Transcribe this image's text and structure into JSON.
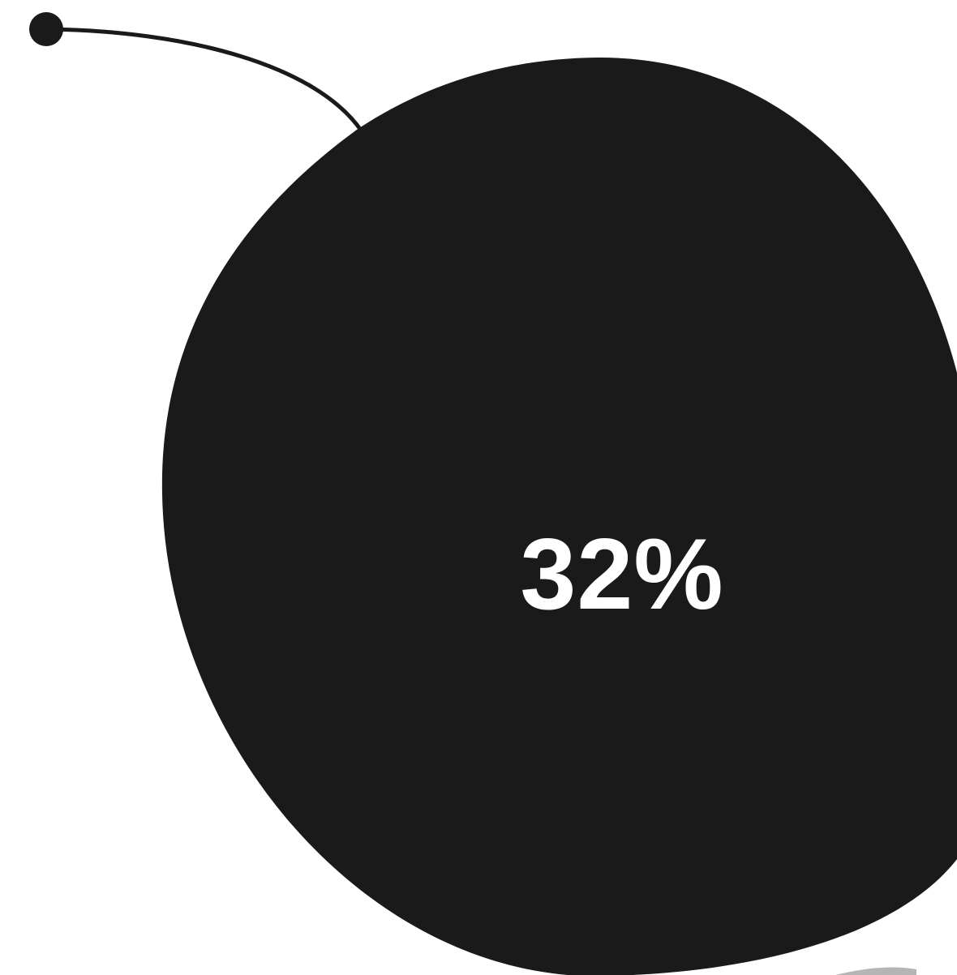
{
  "stat": {
    "value_label": "32%"
  },
  "colors": {
    "blob": "#1a1a1a",
    "connector": "#1a1a1a",
    "text": "#ffffff",
    "accent_shape": "#b5b5b5",
    "background": "#ffffff"
  }
}
